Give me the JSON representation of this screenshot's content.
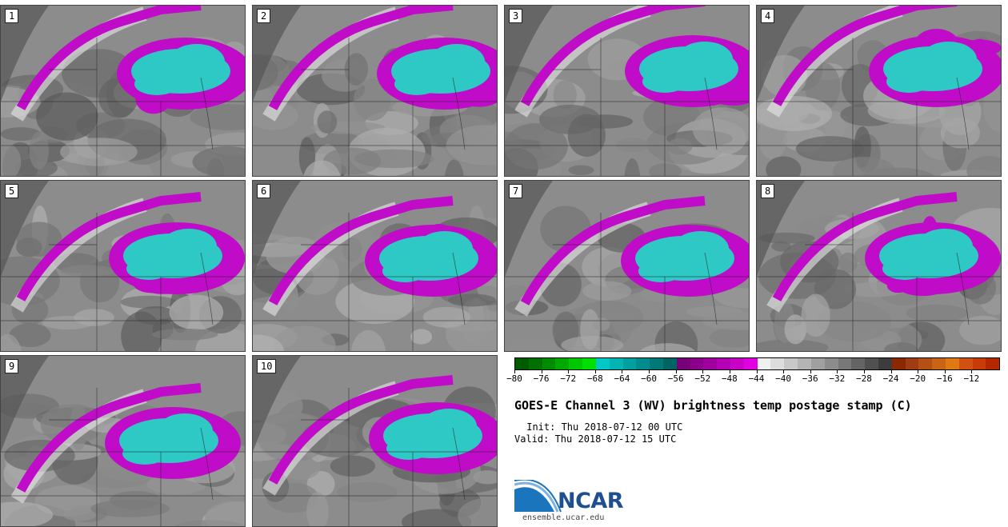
{
  "figure": {
    "title": "GOES-E Channel 3 (WV) brightness temp postage stamp (C)",
    "init": " Init: Thu 2018-07-12 00 UTC",
    "valid": "Valid: Thu 2018-07-12 15 UTC"
  },
  "panels": [
    {
      "label": "1"
    },
    {
      "label": "2"
    },
    {
      "label": "3"
    },
    {
      "label": "4"
    },
    {
      "label": "5"
    },
    {
      "label": "6"
    },
    {
      "label": "7"
    },
    {
      "label": "8"
    },
    {
      "label": "9"
    },
    {
      "label": "10"
    }
  ],
  "colorbar": {
    "ticks": [
      "−80",
      "−76",
      "−72",
      "−68",
      "−64",
      "−60",
      "−56",
      "−52",
      "−48",
      "−44",
      "−40",
      "−36",
      "−32",
      "−28",
      "−24",
      "−20",
      "−16",
      "−12"
    ],
    "colors": [
      "#005a00",
      "#007000",
      "#008c00",
      "#00a800",
      "#00c800",
      "#00e000",
      "#00c8c8",
      "#00b4b4",
      "#00a0a0",
      "#008c8c",
      "#007878",
      "#006464",
      "#780078",
      "#8c008c",
      "#a000a0",
      "#b400b4",
      "#c800c8",
      "#e000e0",
      "#f0f0f0",
      "#dcdcdc",
      "#c8c8c8",
      "#b4b4b4",
      "#a0a0a0",
      "#8c8c8c",
      "#787878",
      "#646464",
      "#505050",
      "#3c3c3c",
      "#8c2800",
      "#a03c14",
      "#b45014",
      "#c86414",
      "#e07814",
      "#d25010",
      "#c83c0a",
      "#b42800"
    ]
  },
  "logo": {
    "name": "NCAR",
    "url": "ensemble.ucar.edu"
  },
  "colors": {
    "cold_cloud": "#2ec9c4",
    "magenta": "#c00cc8",
    "background_gray": "#8a8a8a"
  }
}
